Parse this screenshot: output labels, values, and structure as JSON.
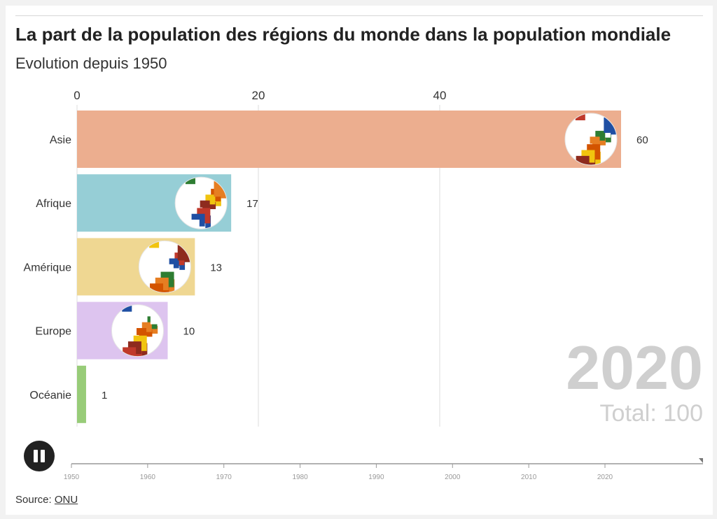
{
  "header": {
    "title": "La part de la population des régions du monde dans la population mondiale",
    "subtitle": "Evolution depuis 1950"
  },
  "overlay": {
    "year": "2020",
    "total_label": "Total: 100"
  },
  "controls": {
    "pause_icon": "pause-icon"
  },
  "timeline": {
    "ticks": [
      "1950",
      "1960",
      "1970",
      "1980",
      "1990",
      "2000",
      "2010",
      "2020"
    ],
    "current": 2020,
    "range": [
      1950,
      2020
    ]
  },
  "footer": {
    "source_label": "Source:",
    "source_link": "ONU"
  },
  "colors": {
    "Asie": "#ecae8f",
    "Afrique": "#96ced6",
    "Amérique": "#efd792",
    "Europe": "#ddc4ef",
    "Océanie": "#98cc78"
  },
  "chart_data": {
    "type": "bar",
    "orientation": "horizontal",
    "title": "La part de la population des régions du monde dans la population mondiale",
    "subtitle": "Evolution depuis 1950",
    "categories": [
      "Asie",
      "Afrique",
      "Amérique",
      "Europe",
      "Océanie"
    ],
    "values": [
      60,
      17,
      13,
      10,
      1
    ],
    "xlim": [
      0,
      60
    ],
    "xticks": [
      "0",
      "20",
      "40"
    ],
    "grid": true,
    "flag_icons": [
      "asia-flags-globe-icon",
      "africa-flags-globe-icon",
      "america-flags-globe-icon",
      "europe-flags-globe-icon",
      ""
    ]
  }
}
